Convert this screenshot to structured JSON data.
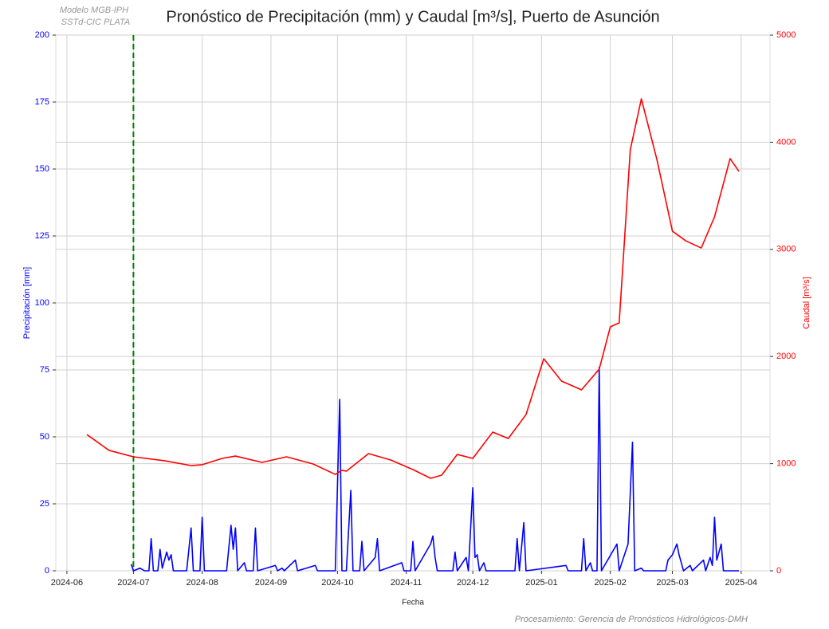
{
  "chart_data": {
    "type": "line",
    "title": "Pronóstico de Precipitación (mm) y Caudal [m³/s], Puerto de Asunción",
    "model_note": [
      "Modelo MGB-IPH",
      "SSTd-CIC PLATA"
    ],
    "footer": "Procesamiento: Gerencia de Pronósticos Hidrológicos-DMH",
    "xlabel": "Fecha",
    "ylabel": "Precipitación [mm]",
    "y2label": "Caudal [m³/s]",
    "xlim": [
      "2024-05-27",
      "2025-04-14"
    ],
    "xticks": [
      "2024-06",
      "2024-07",
      "2024-08",
      "2024-09",
      "2024-10",
      "2024-11",
      "2024-12",
      "2025-01",
      "2025-02",
      "2025-03",
      "2025-04"
    ],
    "ylim": [
      0,
      200
    ],
    "yticks": [
      0,
      25,
      50,
      75,
      100,
      125,
      150,
      175,
      200
    ],
    "y2lim": [
      0,
      5000
    ],
    "y2ticks": [
      0,
      1000,
      2000,
      3000,
      4000,
      5000
    ],
    "grid": true,
    "vlines": [
      {
        "x": "2024-07-01",
        "color": "#008000"
      }
    ],
    "series": [
      {
        "name": "Precipitación",
        "color": "#0000ff",
        "axis": "y",
        "x": [
          "2024-06-30",
          "2024-07-01",
          "2024-07-04",
          "2024-07-06",
          "2024-07-08",
          "2024-07-09",
          "2024-07-10",
          "2024-07-12",
          "2024-07-13",
          "2024-07-14",
          "2024-07-16",
          "2024-07-17",
          "2024-07-18",
          "2024-07-19",
          "2024-07-25",
          "2024-07-27",
          "2024-07-28",
          "2024-07-31",
          "2024-08-01",
          "2024-08-02",
          "2024-08-12",
          "2024-08-14",
          "2024-08-15",
          "2024-08-16",
          "2024-08-17",
          "2024-08-20",
          "2024-08-21",
          "2024-08-24",
          "2024-08-25",
          "2024-08-26",
          "2024-09-03",
          "2024-09-04",
          "2024-09-06",
          "2024-09-07",
          "2024-09-12",
          "2024-09-13",
          "2024-09-21",
          "2024-09-22",
          "2024-09-30",
          "2024-10-02",
          "2024-10-03",
          "2024-10-05",
          "2024-10-07",
          "2024-10-08",
          "2024-10-11",
          "2024-10-12",
          "2024-10-13",
          "2024-10-18",
          "2024-10-19",
          "2024-10-20",
          "2024-10-30",
          "2024-10-31",
          "2024-11-03",
          "2024-11-04",
          "2024-11-05",
          "2024-11-12",
          "2024-11-13",
          "2024-11-14",
          "2024-11-15",
          "2024-11-22",
          "2024-11-23",
          "2024-11-24",
          "2024-11-28",
          "2024-11-29",
          "2024-12-01",
          "2024-12-02",
          "2024-12-03",
          "2024-12-04",
          "2024-12-06",
          "2024-12-07",
          "2024-12-20",
          "2024-12-21",
          "2024-12-22",
          "2024-12-24",
          "2024-12-25",
          "2025-01-12",
          "2025-01-13",
          "2025-01-19",
          "2025-01-20",
          "2025-01-21",
          "2025-01-23",
          "2025-01-24",
          "2025-01-26",
          "2025-01-27",
          "2025-01-28",
          "2025-02-04",
          "2025-02-05",
          "2025-02-09",
          "2025-02-11",
          "2025-02-12",
          "2025-02-15",
          "2025-02-16",
          "2025-02-26",
          "2025-02-27",
          "2025-03-01",
          "2025-03-03",
          "2025-03-04",
          "2025-03-06",
          "2025-03-09",
          "2025-03-10",
          "2025-03-15",
          "2025-03-16",
          "2025-03-18",
          "2025-03-19",
          "2025-03-20",
          "2025-03-21",
          "2025-03-23",
          "2025-03-24",
          "2025-03-31"
        ],
        "values": [
          2.5,
          0,
          1,
          0,
          0,
          12,
          0,
          0,
          8,
          1,
          7,
          4,
          6,
          0,
          0,
          16,
          0,
          0,
          20,
          0,
          0,
          17,
          8,
          16,
          0,
          3,
          0,
          0,
          16,
          0,
          2,
          0,
          1,
          0,
          4,
          0,
          2,
          0,
          0,
          64,
          0,
          0,
          30,
          0,
          0,
          11,
          0,
          5,
          12,
          0,
          3,
          0,
          0,
          11,
          0,
          10,
          13,
          5,
          0,
          0,
          7,
          0,
          5,
          0,
          31,
          5,
          6,
          0,
          3,
          0,
          0,
          12,
          0,
          18,
          0,
          2,
          0,
          0,
          12,
          0,
          3,
          0,
          0,
          76,
          0,
          10,
          0,
          10,
          48,
          0,
          1,
          0,
          0,
          4,
          6,
          10,
          6,
          0,
          2,
          0,
          4,
          0,
          5,
          2,
          20,
          4,
          10,
          0,
          0
        ]
      },
      {
        "name": "Caudal",
        "color": "#ff0000",
        "axis": "y2",
        "x": [
          "2024-06-10",
          "2024-06-20",
          "2024-07-01",
          "2024-07-15",
          "2024-07-27",
          "2024-08-01",
          "2024-08-10",
          "2024-08-16",
          "2024-08-28",
          "2024-09-08",
          "2024-09-20",
          "2024-09-30",
          "2024-10-03",
          "2024-10-05",
          "2024-10-15",
          "2024-10-25",
          "2024-11-04",
          "2024-11-12",
          "2024-11-17",
          "2024-11-24",
          "2024-12-01",
          "2024-12-10",
          "2024-12-17",
          "2024-12-25",
          "2025-01-02",
          "2025-01-10",
          "2025-01-19",
          "2025-01-27",
          "2025-02-01",
          "2025-02-05",
          "2025-02-10",
          "2025-02-15",
          "2025-02-22",
          "2025-03-01",
          "2025-03-07",
          "2025-03-14",
          "2025-03-20",
          "2025-03-27",
          "2025-03-31"
        ],
        "values": [
          1272,
          1124,
          1064,
          1027,
          982,
          990,
          1049,
          1071,
          1012,
          1064,
          997,
          900,
          938,
          930,
          1094,
          1034,
          945,
          863,
          893,
          1086,
          1049,
          1295,
          1235,
          1458,
          1979,
          1771,
          1689,
          1882,
          2277,
          2314,
          3929,
          4405,
          3839,
          3170,
          3080,
          3013,
          3304,
          3847,
          3728
        ]
      }
    ]
  }
}
